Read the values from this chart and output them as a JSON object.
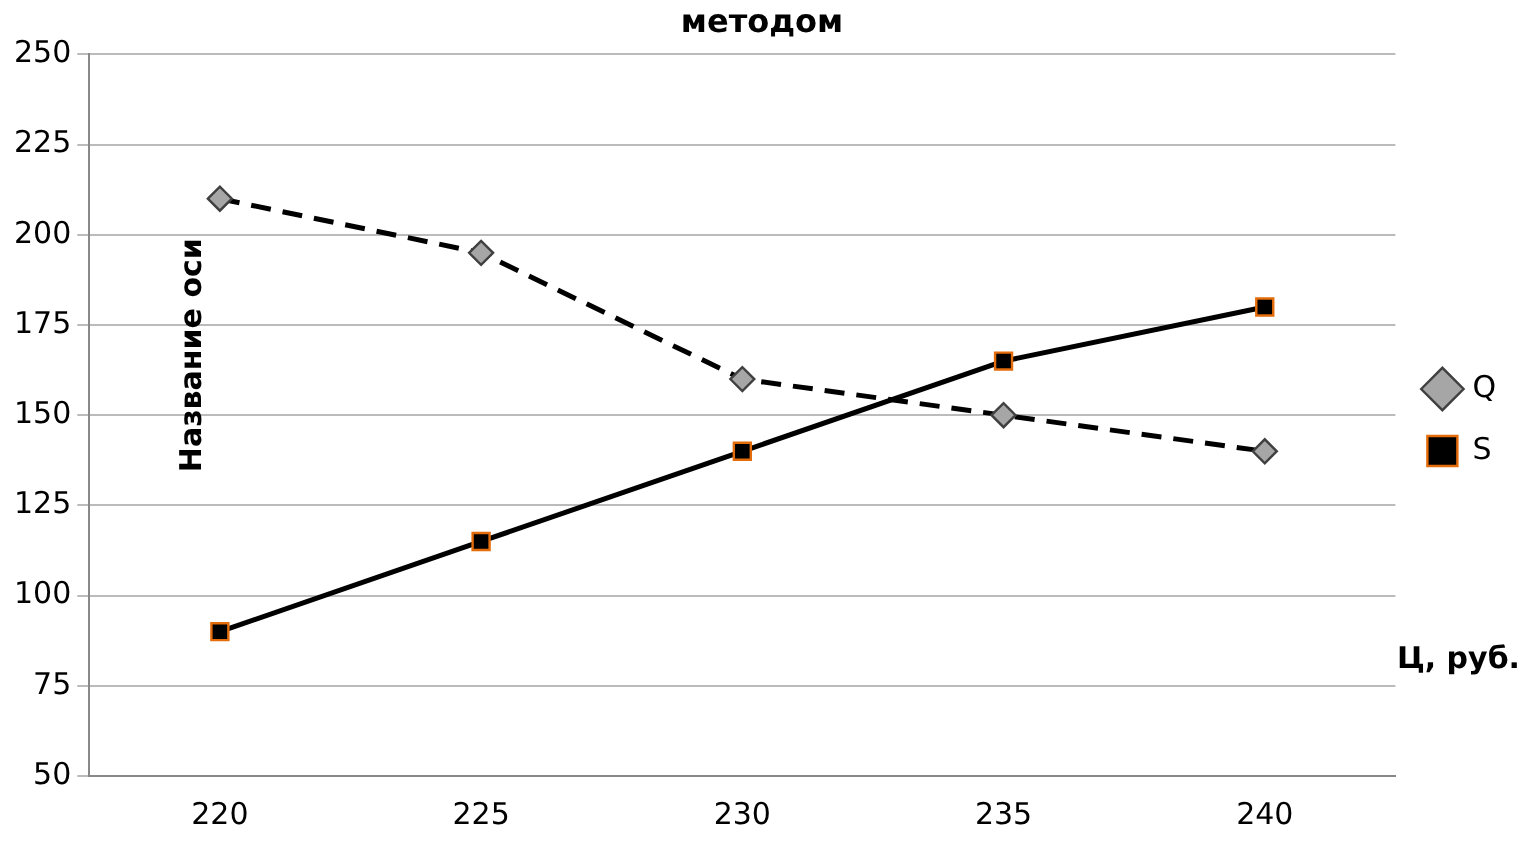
{
  "chart_data": {
    "type": "line",
    "title": "методом",
    "xlabel": "Ц, руб.",
    "ylabel": "Название оси",
    "categories": [
      "220",
      "225",
      "230",
      "235",
      "240"
    ],
    "series": [
      {
        "name": "Q",
        "color": "#000000",
        "values": [
          210,
          195,
          160,
          150,
          140
        ],
        "marker": "diamond",
        "line_style": "dashed"
      },
      {
        "name": "S",
        "color": "#000000",
        "values": [
          90,
          115,
          140,
          165,
          180
        ],
        "marker": "square",
        "line_style": "solid"
      }
    ],
    "ylim": [
      50,
      250
    ],
    "yticks": [
      50,
      75,
      100,
      125,
      150,
      175,
      200,
      225,
      250
    ],
    "grid": "y",
    "legend": "right"
  }
}
